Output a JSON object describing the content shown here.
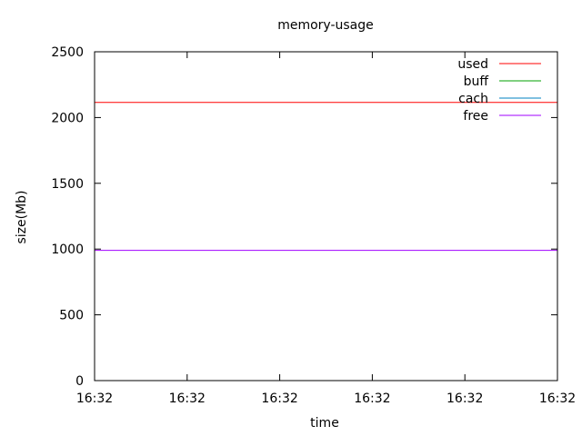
{
  "chart_data": {
    "type": "line",
    "title": "memory-usage",
    "xlabel": "time",
    "ylabel": "size(Mb)",
    "xticks": [
      "16:32",
      "16:32",
      "16:32",
      "16:32",
      "16:32",
      "16:32"
    ],
    "yticks": [
      0,
      500,
      1000,
      1500,
      2000,
      2500
    ],
    "ylim": [
      0,
      2500
    ],
    "grid": false,
    "legend_position": "top-right",
    "series": [
      {
        "name": "used",
        "color": "#ff0000",
        "values": [
          2115,
          2115
        ]
      },
      {
        "name": "buff",
        "color": "#00a000",
        "values": [
          0,
          0
        ]
      },
      {
        "name": "cach",
        "color": "#0080c0",
        "values": [
          0,
          0
        ]
      },
      {
        "name": "free",
        "color": "#a000ff",
        "values": [
          990,
          990
        ]
      }
    ]
  }
}
